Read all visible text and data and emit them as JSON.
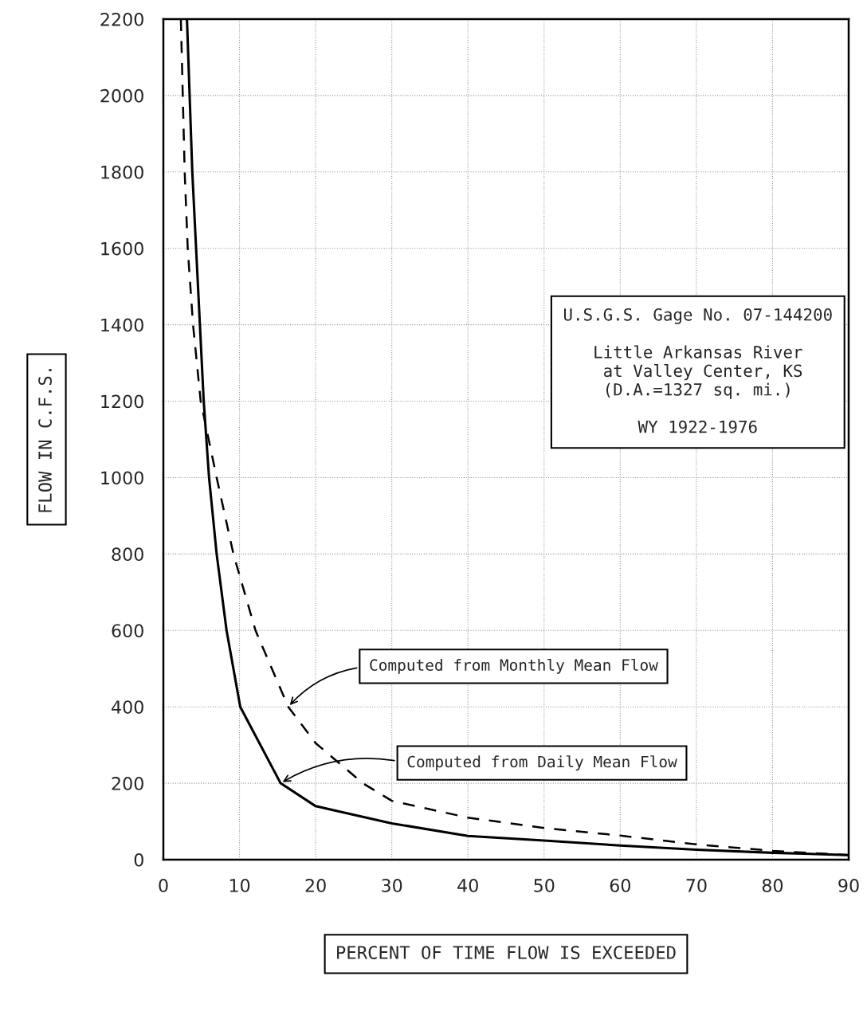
{
  "chart_data": {
    "type": "line",
    "xlabel": "PERCENT OF TIME FLOW IS EXCEEDED",
    "ylabel": "FLOW IN C.F.S.",
    "xlim": [
      0,
      90
    ],
    "xticks": [
      0,
      10,
      20,
      30,
      40,
      50,
      60,
      70,
      80,
      90
    ],
    "ylim": [
      0,
      2200
    ],
    "yticks": [
      0,
      200,
      400,
      600,
      800,
      1000,
      1200,
      1400,
      1600,
      1800,
      2000,
      2200
    ],
    "grid": true,
    "legend": false,
    "marker": "none",
    "series": [
      {
        "name": "Computed from Monthly Mean Flow",
        "color": "#000000",
        "line_style": "dashed",
        "x": [
          2.3,
          2.8,
          3.2,
          3.9,
          4.9,
          7.0,
          9.2,
          12.1,
          16.4,
          20,
          26.2,
          30,
          40,
          50,
          60,
          70,
          80,
          90
        ],
        "values": [
          2200,
          1800,
          1600,
          1400,
          1200,
          1000,
          800,
          600,
          400,
          305,
          200,
          154,
          110,
          83,
          63,
          40,
          23,
          12
        ]
      },
      {
        "name": "Computed from Daily Mean Flow",
        "color": "#000000",
        "line_style": "solid",
        "x": [
          3.1,
          3.8,
          4.3,
          4.8,
          5.3,
          6.0,
          7.0,
          8.3,
          10.1,
          15.4,
          20,
          30,
          40,
          50,
          60,
          70,
          80,
          90
        ],
        "values": [
          2200,
          1800,
          1600,
          1400,
          1200,
          1000,
          800,
          600,
          400,
          200,
          140,
          95,
          62,
          50,
          37,
          26,
          18,
          12
        ]
      }
    ],
    "annotations": [
      "U.S.G.S. Gage No. 07-144200\n\nLittle Arkansas River\n at Valley Center, KS\n(D.A.=1327 sq. mi.)\n\nWY 1922-1976"
    ]
  }
}
